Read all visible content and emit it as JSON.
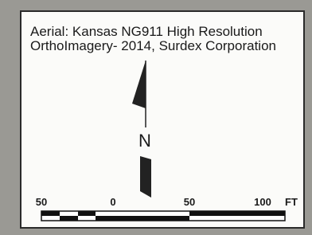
{
  "caption": {
    "lines": [
      "Aerial: Kansas NG911 High Resolution",
      "OrthoImagery- 2014, Surdex Corporation"
    ]
  },
  "north_arrow": {
    "label": "N"
  },
  "scale_bar": {
    "labels": [
      "50",
      "0",
      "50",
      "100"
    ],
    "unit": "FT"
  }
}
